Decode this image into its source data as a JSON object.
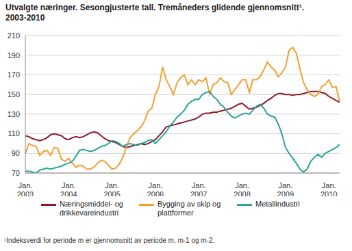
{
  "chart_data": {
    "type": "line",
    "title": "Utvalgte næringer. Sesongjusterte tall. Tremåneders glidende gjennomsnitt¹. 2003-2010",
    "footnote": "¹Indeksverdi for periode m er gjennomsnitt av periode m, m-1 og m-2.",
    "categories": [
      "Jan. 2003",
      null,
      null,
      null,
      null,
      null,
      null,
      null,
      null,
      null,
      null,
      null,
      "Jan. 2004",
      null,
      null,
      null,
      null,
      null,
      null,
      null,
      null,
      null,
      null,
      null,
      "Jan. 2005",
      null,
      null,
      null,
      null,
      null,
      null,
      null,
      null,
      null,
      null,
      null,
      "Jan. 2006",
      null,
      null,
      null,
      null,
      null,
      null,
      null,
      null,
      null,
      null,
      null,
      "Jan. 2007",
      null,
      null,
      null,
      null,
      null,
      null,
      null,
      null,
      null,
      null,
      null,
      "Jan. 2008",
      null,
      null,
      null,
      null,
      null,
      null,
      null,
      null,
      null,
      null,
      null,
      "Jan. 2009",
      null,
      null,
      null,
      null,
      null,
      null,
      null,
      null,
      null,
      null,
      null,
      "Jan. 2010",
      null,
      null,
      null
    ],
    "series": [
      {
        "name": "Næringsmiddel- og drikkevareindustri",
        "color": "#8b1a2b",
        "values": [
          108,
          107,
          105,
          104,
          103,
          104,
          106,
          109,
          110,
          109,
          108,
          105,
          104,
          106,
          107,
          106,
          107,
          109,
          111,
          112,
          111,
          108,
          105,
          103,
          102,
          101,
          99,
          97,
          96,
          97,
          98,
          99,
          100,
          99,
          100,
          102,
          104,
          108,
          112,
          117,
          118,
          119,
          120,
          121,
          122,
          123,
          124,
          125,
          127,
          130,
          131,
          131,
          132,
          132,
          133,
          134,
          135,
          136,
          138,
          140,
          141,
          138,
          135,
          136,
          137,
          139,
          141,
          144,
          146,
          149,
          151,
          151,
          150,
          150,
          149,
          150,
          150,
          151,
          152,
          153,
          153,
          153,
          152,
          151,
          148,
          146,
          144,
          142
        ]
      },
      {
        "name": "Bygging av skip og plattformer",
        "color": "#f0a030",
        "values": [
          90,
          100,
          98,
          97,
          88,
          92,
          93,
          88,
          96,
          95,
          84,
          82,
          85,
          80,
          76,
          78,
          77,
          74,
          74,
          76,
          80,
          83,
          82,
          78,
          74,
          75,
          79,
          86,
          97,
          106,
          110,
          113,
          117,
          123,
          133,
          136,
          150,
          158,
          178,
          165,
          158,
          150,
          162,
          167,
          170,
          160,
          165,
          160,
          165,
          163,
          167,
          150,
          160,
          162,
          167,
          163,
          162,
          150,
          155,
          160,
          165,
          165,
          152,
          165,
          165,
          168,
          175,
          183,
          178,
          175,
          168,
          172,
          178,
          195,
          198,
          192,
          176,
          162,
          155,
          150,
          148,
          150,
          158,
          160,
          165,
          157,
          158,
          143
        ]
      },
      {
        "name": "Metallindustri",
        "color": "#2aa39a",
        "values": [
          72,
          72,
          71,
          70,
          73,
          74,
          75,
          74,
          75,
          76,
          77,
          79,
          80,
          82,
          87,
          93,
          94,
          93,
          92,
          93,
          95,
          97,
          98,
          100,
          103,
          102,
          100,
          97,
          99,
          100,
          99,
          98,
          100,
          101,
          103,
          104,
          100,
          104,
          108,
          112,
          118,
          122,
          127,
          130,
          134,
          140,
          143,
          145,
          145,
          150,
          152,
          153,
          148,
          145,
          140,
          137,
          132,
          128,
          126,
          128,
          130,
          131,
          130,
          134,
          138,
          140,
          136,
          130,
          128,
          127,
          120,
          110,
          96,
          90,
          85,
          80,
          74,
          71,
          74,
          82,
          86,
          89,
          86,
          90,
          92,
          94,
          96,
          99
        ]
      }
    ],
    "ylim": [
      70,
      210
    ],
    "yticks": [
      70,
      90,
      110,
      130,
      150,
      170,
      190,
      210
    ],
    "grid": true,
    "legend": "bottom"
  }
}
